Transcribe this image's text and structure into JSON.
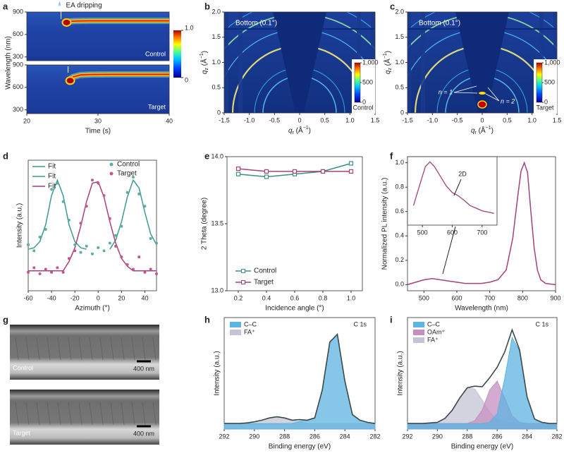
{
  "chart_data": [
    {
      "panel": "a",
      "type": "heatmap",
      "xlabel": "Time (s)",
      "ylabel": "Wavelength (nm)",
      "annotation": "EA dripping",
      "xlim": [
        20,
        40
      ],
      "xticks": [
        20,
        30,
        40
      ],
      "ylim": [
        250,
        900
      ],
      "yticks": [
        300,
        600,
        900
      ],
      "colorbar": {
        "ticks": [
          0,
          {
            "value": 1,
            "label": "1.0"
          }
        ]
      },
      "subplots": [
        {
          "label": "Control",
          "x": [
            25.3,
            26,
            27,
            29,
            32,
            36,
            40
          ],
          "values": [
            760,
            775,
            780,
            782,
            782,
            782,
            782
          ]
        },
        {
          "label": "Target",
          "x": [
            25.8,
            26.5,
            27.5,
            29,
            32,
            36,
            40
          ],
          "values": [
            690,
            740,
            765,
            772,
            774,
            774,
            774
          ]
        }
      ]
    },
    {
      "panel": "b",
      "type": "image2d",
      "title": "Bottom (0.1°)",
      "label": "Control",
      "xlabel": [
        "q",
        "r",
        " (Å",
        "−1",
        ")"
      ],
      "ylabel": [
        "q",
        "z",
        " (Å",
        "−1",
        ")"
      ],
      "xlim": [
        -1.5,
        1.5
      ],
      "xticks": [
        -1.5,
        {
          "value": -1,
          "label": "-1.0"
        },
        -0.5,
        0,
        0.5,
        {
          "value": 1,
          "label": "1.0"
        },
        1.5
      ],
      "ylim": [
        0,
        2
      ],
      "yticks": [
        0,
        0.5,
        {
          "value": 1,
          "label": "1.0"
        },
        1.5,
        {
          "value": 2,
          "label": "2.0"
        }
      ],
      "colorbar": {
        "ticks": [
          0,
          500,
          {
            "value": 1000,
            "label": "1,000"
          }
        ]
      }
    },
    {
      "panel": "c",
      "type": "image2d",
      "title": "Bottom (0.1°)",
      "label": "Target",
      "annotations": [
        "n = 1",
        "n = 2"
      ],
      "xlabel": [
        "q",
        "r",
        " (Å",
        "−1",
        ")"
      ],
      "ylabel": [
        "q",
        "z",
        " (Å",
        "−1",
        ")"
      ],
      "xlim": [
        -1.5,
        1.5
      ],
      "xticks": [
        -1.5,
        {
          "value": -1,
          "label": "-1.0"
        },
        -0.5,
        0,
        0.5,
        {
          "value": 1,
          "label": "1.0"
        },
        1.5
      ],
      "ylim": [
        0,
        2
      ],
      "yticks": [
        0,
        0.5,
        {
          "value": 1,
          "label": "1.0"
        },
        1.5,
        {
          "value": 2,
          "label": "2.0"
        }
      ],
      "colorbar": {
        "ticks": [
          0,
          500,
          {
            "value": 1000,
            "label": "1,000"
          }
        ]
      }
    },
    {
      "panel": "d",
      "type": "line",
      "xlabel": "Azimuth (°)",
      "ylabel": "Intensity (a.u.)",
      "xlim": [
        -60,
        50
      ],
      "xticks": [
        -60,
        -40,
        -20,
        0,
        20,
        40
      ],
      "ylim": [
        0,
        0.85
      ],
      "x": [
        -60,
        -55,
        -50,
        -45,
        -40,
        -35,
        -30,
        -25,
        -20,
        -15,
        -10,
        -5,
        0,
        5,
        10,
        15,
        20,
        25,
        30,
        35,
        40,
        45,
        50
      ],
      "series": [
        {
          "name": "Fit",
          "style": "line",
          "color": "#3d9a90",
          "values": [
            0.27,
            0.28,
            0.32,
            0.43,
            0.62,
            0.72,
            0.62,
            0.43,
            0.32,
            0.28,
            0.27,
            null,
            null,
            null,
            null,
            null,
            null,
            null,
            null,
            null,
            null,
            null,
            null
          ]
        },
        {
          "name": "Fit",
          "style": "line",
          "color": "#3d9a90",
          "values": [
            null,
            null,
            null,
            null,
            null,
            null,
            null,
            null,
            null,
            null,
            null,
            null,
            null,
            null,
            0.27,
            0.33,
            0.45,
            0.61,
            0.72,
            0.67,
            0.51,
            0.37,
            0.3
          ]
        },
        {
          "name": "Fit",
          "style": "line",
          "color": "#ad3f7c",
          "values": [
            0.13,
            0.13,
            0.13,
            0.13,
            0.13,
            0.13,
            0.13,
            0.19,
            0.28,
            0.42,
            0.58,
            0.7,
            0.71,
            0.61,
            0.45,
            0.31,
            0.21,
            0.16,
            0.13,
            0.13,
            0.13,
            0.13,
            0.13
          ]
        },
        {
          "name": "Control",
          "style": "scatter",
          "color": "#5aaea3",
          "values": [
            0.3,
            0.26,
            0.35,
            0.4,
            0.66,
            0.7,
            0.58,
            0.46,
            0.3,
            0.25,
            0.29,
            0.24,
            0.28,
            0.26,
            0.31,
            0.36,
            0.42,
            0.64,
            0.74,
            0.63,
            0.55,
            0.34,
            0.31
          ]
        },
        {
          "name": "Target",
          "style": "scatter",
          "color": "#c0588f",
          "values": [
            0.12,
            0.15,
            0.11,
            0.14,
            0.12,
            0.15,
            0.12,
            0.21,
            0.26,
            0.44,
            0.55,
            0.72,
            0.7,
            0.62,
            0.47,
            0.29,
            0.22,
            0.17,
            0.14,
            0.22,
            0.12,
            0.14,
            0.11
          ]
        }
      ]
    },
    {
      "panel": "e",
      "type": "line",
      "xlabel": "Incidence angle (°)",
      "ylabel": "2 Theta (degree)",
      "marker": "square",
      "xlim": [
        0.12,
        1.08
      ],
      "xticks": [
        0.2,
        0.4,
        0.6,
        0.8,
        {
          "value": 1,
          "label": "1.0"
        }
      ],
      "ylim": [
        13,
        14
      ],
      "yticks": [
        {
          "value": 13,
          "label": "13.0"
        },
        13.5,
        {
          "value": 14,
          "label": "14.0"
        }
      ],
      "x": [
        0.2,
        0.4,
        0.6,
        0.8,
        1.0
      ],
      "series": [
        {
          "name": "Control",
          "style": "line",
          "color": "#3b8f87",
          "values": [
            13.87,
            13.85,
            13.87,
            13.89,
            13.95
          ]
        },
        {
          "name": "Target",
          "style": "line",
          "color": "#a3437a",
          "values": [
            13.91,
            13.89,
            13.89,
            13.89,
            13.89
          ]
        }
      ]
    },
    {
      "panel": "f",
      "type": "line",
      "xlabel": "Wavelength (nm)",
      "ylabel": "Normalized PL intensity (a.u.)",
      "xlim": [
        450,
        900
      ],
      "xticks": [
        500,
        600,
        700,
        800,
        900
      ],
      "ylim": [
        -0.05,
        1.05
      ],
      "yticks": [
        {
          "value": 0,
          "label": "0.0"
        },
        0.2,
        0.4,
        0.6,
        0.8,
        {
          "value": 1,
          "label": "1.0"
        }
      ],
      "x": [
        450,
        475,
        500,
        525,
        550,
        575,
        600,
        625,
        650,
        675,
        700,
        725,
        750,
        770,
        785,
        795,
        805,
        815,
        825,
        835,
        845,
        855,
        870,
        900
      ],
      "series": [
        {
          "style": "line",
          "color": "#a3437a",
          "values": [
            0.0,
            0.02,
            0.04,
            0.05,
            0.04,
            0.03,
            0.02,
            0.01,
            0.01,
            0.01,
            0.02,
            0.04,
            0.12,
            0.38,
            0.72,
            0.93,
            1.0,
            0.92,
            0.6,
            0.3,
            0.12,
            0.04,
            0.01,
            0.0
          ]
        }
      ],
      "inset": {
        "annotation": "2D",
        "color": "#a3437a",
        "xlim": [
          450,
          750
        ],
        "xticks": [
          500,
          600,
          700
        ],
        "ylim": [
          0,
          1.05
        ],
        "x": [
          470,
          490,
          510,
          525,
          540,
          560,
          580,
          600,
          620,
          640,
          660,
          680,
          700,
          720,
          740
        ],
        "values": [
          0.3,
          0.6,
          0.9,
          0.97,
          0.9,
          0.75,
          0.6,
          0.5,
          0.45,
          0.38,
          0.3,
          0.26,
          0.22,
          0.2,
          0.18
        ]
      }
    },
    {
      "panel": "g",
      "type": "image",
      "images": [
        {
          "label": "Control",
          "scale": "400 nm"
        },
        {
          "label": "Target",
          "scale": "400 nm"
        }
      ]
    },
    {
      "panel": "h",
      "type": "xps",
      "title": "C 1s",
      "xlabel": "Binding energy (eV)",
      "ylabel": "Intensity (a.u.)",
      "xlim": [
        292,
        282
      ],
      "xticks": [
        292,
        290,
        288,
        286,
        284,
        282
      ],
      "ylim": [
        0,
        1
      ],
      "x": [
        292,
        291.5,
        291,
        290.5,
        290,
        289.5,
        289,
        288.5,
        288,
        287.5,
        287,
        286.5,
        286,
        285.5,
        285,
        284.5,
        284,
        283.5,
        283,
        282.5,
        282
      ],
      "series": [
        {
          "name": "C–C",
          "color": "#5eb3e0",
          "values": [
            0.05,
            0.05,
            0.05,
            0.05,
            0.05,
            0.05,
            0.05,
            0.05,
            0.05,
            0.05,
            0.07,
            0.08,
            0.1,
            0.35,
            0.78,
            0.85,
            0.43,
            0.13,
            0.08,
            0.06,
            0.05
          ]
        },
        {
          "name": "FA⁺",
          "color": "#c4c4d6",
          "values": [
            0.05,
            0.05,
            0.05,
            0.055,
            0.065,
            0.08,
            0.1,
            0.11,
            0.1,
            0.08,
            0.065,
            0.05,
            0.05,
            0.05,
            0.05,
            0.05,
            0.05,
            0.05,
            0.05,
            0.05,
            0.05
          ]
        },
        {
          "color": "#3a4a4a",
          "values": [
            0.05,
            0.05,
            0.05,
            0.055,
            0.065,
            0.08,
            0.1,
            0.11,
            0.1,
            0.08,
            0.085,
            0.08,
            0.1,
            0.35,
            0.78,
            0.85,
            0.43,
            0.13,
            0.08,
            0.06,
            0.05
          ]
        }
      ]
    },
    {
      "panel": "i",
      "type": "xps",
      "title": "C 1s",
      "xlabel": "Binding energy (eV)",
      "ylabel": "Intensity (a.u.)",
      "xlim": [
        292,
        282
      ],
      "xticks": [
        292,
        290,
        288,
        286,
        284,
        282
      ],
      "ylim": [
        0,
        1
      ],
      "x": [
        292,
        291.5,
        291,
        290.5,
        290,
        289.5,
        289,
        288.5,
        288,
        287.5,
        287,
        286.5,
        286,
        285.5,
        285,
        284.5,
        284,
        283.5,
        283,
        282.5,
        282
      ],
      "series": [
        {
          "name": "C–C",
          "color": "#5eb3e0",
          "values": [
            0.05,
            0.05,
            0.05,
            0.05,
            0.05,
            0.05,
            0.05,
            0.05,
            0.05,
            0.05,
            0.05,
            0.06,
            0.14,
            0.45,
            0.82,
            0.7,
            0.29,
            0.09,
            0.06,
            0.05,
            0.05
          ]
        },
        {
          "name": "OAm⁺",
          "color": "#c48fc0",
          "values": [
            0.05,
            0.05,
            0.05,
            0.05,
            0.05,
            0.05,
            0.05,
            0.05,
            0.05,
            0.075,
            0.17,
            0.35,
            0.43,
            0.28,
            0.12,
            0.06,
            0.05,
            0.05,
            0.05,
            0.05,
            0.05
          ]
        },
        {
          "name": "FA⁺",
          "color": "#c4c4d6",
          "values": [
            0.05,
            0.05,
            0.05,
            0.05,
            0.06,
            0.095,
            0.17,
            0.28,
            0.37,
            0.36,
            0.26,
            0.15,
            0.085,
            0.06,
            0.05,
            0.05,
            0.05,
            0.05,
            0.05,
            0.05,
            0.05
          ]
        },
        {
          "color": "#3a4a4a",
          "values": [
            0.05,
            0.05,
            0.05,
            0.055,
            0.06,
            0.095,
            0.17,
            0.28,
            0.37,
            0.385,
            0.38,
            0.46,
            0.555,
            0.69,
            0.89,
            0.71,
            0.29,
            0.09,
            0.06,
            0.05,
            0.05
          ]
        }
      ]
    }
  ]
}
